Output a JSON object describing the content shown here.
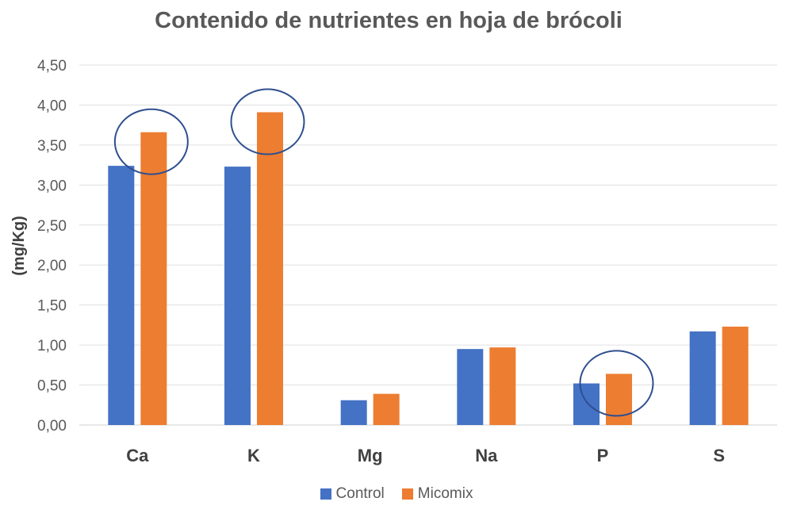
{
  "chart_data": {
    "type": "bar",
    "title": "Contenido de nutrientes en hoja de brócoli",
    "ylabel": "(mg/Kg)",
    "xlabel": "",
    "categories": [
      "Ca",
      "K",
      "Mg",
      "Na",
      "P",
      "S"
    ],
    "series": [
      {
        "name": "Control",
        "color": "#4472C4",
        "values": [
          3.24,
          3.23,
          0.31,
          0.95,
          0.52,
          1.17
        ]
      },
      {
        "name": "Micomix",
        "color": "#ED7D31",
        "values": [
          3.66,
          3.91,
          0.39,
          0.97,
          0.64,
          1.23
        ]
      }
    ],
    "ylim": [
      0,
      4.5
    ],
    "yticks": [
      "0,00",
      "0,50",
      "1,00",
      "1,50",
      "2,00",
      "2,50",
      "3,00",
      "3,50",
      "4,00",
      "4,50"
    ],
    "grid": true,
    "legend": "bottom",
    "annotations": [
      {
        "type": "circle",
        "category": "Ca",
        "series": "Micomix",
        "color": "#2F4F8F"
      },
      {
        "type": "circle",
        "category": "K",
        "series": "Micomix",
        "color": "#2F4F8F"
      },
      {
        "type": "circle",
        "category": "P",
        "series": "Micomix",
        "color": "#2F4F8F"
      }
    ]
  }
}
